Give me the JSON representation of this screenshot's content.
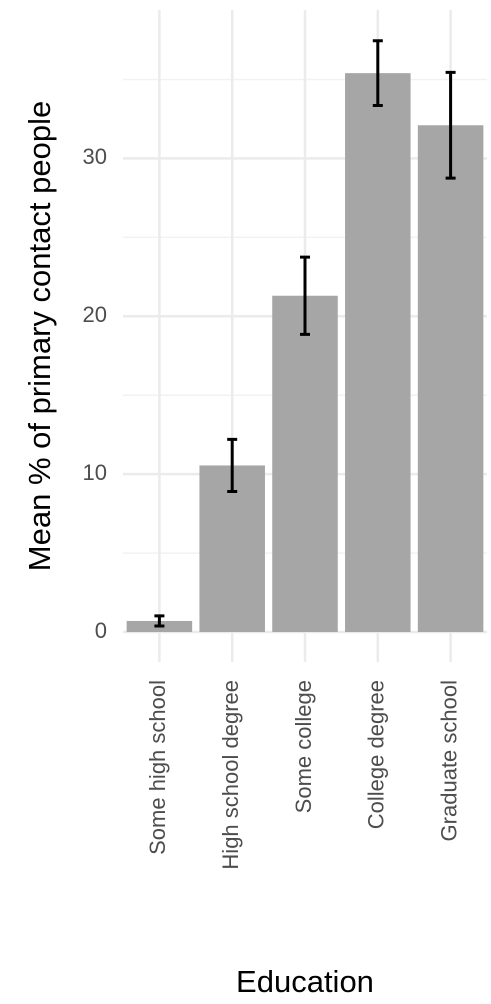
{
  "chart_data": {
    "type": "bar",
    "categories": [
      "Some high school",
      "High school degree",
      "Some college",
      "College degree",
      "Graduate school"
    ],
    "values": [
      0.7,
      10.55,
      21.3,
      35.4,
      32.1
    ],
    "errors": [
      0.32,
      1.65,
      2.45,
      2.05,
      3.35
    ],
    "color": "#a6a6a6",
    "error_color": "#000000",
    "x_label": "Education",
    "y_label": "Mean % of primary contact people",
    "ylim": [
      -1.9,
      39.4
    ],
    "yticks": [
      0,
      10,
      20,
      30
    ],
    "y_minor_grid": [
      5,
      15,
      25,
      35
    ],
    "grid": true
  }
}
